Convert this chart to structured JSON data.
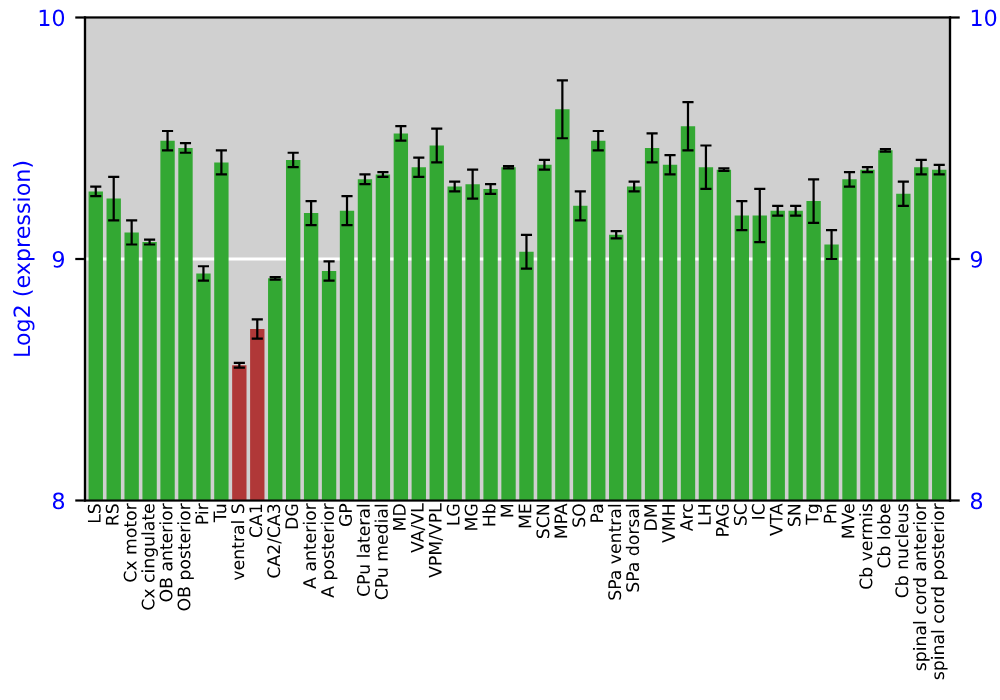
{
  "chart_data": {
    "type": "bar",
    "ylabel": "Log2 (expression)",
    "categories": [
      "LS",
      "RS",
      "Cx motor",
      "Cx cingulate",
      "OB anterior",
      "OB posterior",
      "Pir",
      "Tu",
      "ventral S",
      "CA1",
      "CA2/CA3",
      "DG",
      "A anterior",
      "A posterior",
      "GP",
      "CPu lateral",
      "CPu medial",
      "MD",
      "VA/VL",
      "VPM/VPL",
      "LG",
      "MG",
      "Hb",
      "M",
      "ME",
      "SCN",
      "MPA",
      "SO",
      "Pa",
      "SPa ventral",
      "SPa dorsal",
      "DM",
      "VMH",
      "Arc",
      "LH",
      "PAG",
      "SC",
      "IC",
      "VTA",
      "SN",
      "Tg",
      "Pn",
      "MVe",
      "Cb vermis",
      "Cb lobe",
      "Cb nucleus",
      "spinal cord anterior",
      "spinal cord posterior"
    ],
    "values": [
      9.28,
      9.25,
      9.11,
      9.07,
      9.49,
      9.46,
      8.94,
      9.4,
      8.56,
      8.71,
      8.92,
      9.41,
      9.19,
      8.95,
      9.2,
      9.33,
      9.35,
      9.52,
      9.38,
      9.47,
      9.3,
      9.31,
      9.29,
      9.38,
      9.03,
      9.39,
      9.62,
      9.22,
      9.49,
      9.1,
      9.3,
      9.46,
      9.39,
      9.55,
      9.38,
      9.37,
      9.18,
      9.18,
      9.2,
      9.2,
      9.24,
      9.06,
      9.33,
      9.37,
      9.45,
      9.27,
      9.38,
      9.37
    ],
    "errors": [
      0.02,
      0.09,
      0.05,
      0.01,
      0.04,
      0.02,
      0.03,
      0.05,
      0.01,
      0.04,
      0.005,
      0.03,
      0.05,
      0.04,
      0.06,
      0.02,
      0.01,
      0.03,
      0.04,
      0.07,
      0.02,
      0.06,
      0.02,
      0.005,
      0.07,
      0.02,
      0.12,
      0.06,
      0.04,
      0.015,
      0.02,
      0.06,
      0.04,
      0.1,
      0.09,
      0.005,
      0.06,
      0.11,
      0.02,
      0.02,
      0.09,
      0.06,
      0.03,
      0.01,
      0.005,
      0.05,
      0.03,
      0.02
    ],
    "colors": [
      "#33a833",
      "#33a833",
      "#33a833",
      "#33a833",
      "#33a833",
      "#33a833",
      "#33a833",
      "#33a833",
      "#b03838",
      "#b03838",
      "#33a833",
      "#33a833",
      "#33a833",
      "#33a833",
      "#33a833",
      "#33a833",
      "#33a833",
      "#33a833",
      "#33a833",
      "#33a833",
      "#33a833",
      "#33a833",
      "#33a833",
      "#33a833",
      "#33a833",
      "#33a833",
      "#33a833",
      "#33a833",
      "#33a833",
      "#33a833",
      "#33a833",
      "#33a833",
      "#33a833",
      "#33a833",
      "#33a833",
      "#33a833",
      "#33a833",
      "#33a833",
      "#33a833",
      "#33a833",
      "#33a833",
      "#33a833",
      "#33a833",
      "#33a833",
      "#33a833",
      "#33a833",
      "#33a833",
      "#33a833"
    ],
    "ylim": [
      8,
      10
    ],
    "yticks": [
      8,
      9,
      10
    ],
    "y2lim": [
      8,
      10
    ],
    "y2ticks": [
      8,
      9,
      10
    ],
    "grid": "y"
  }
}
